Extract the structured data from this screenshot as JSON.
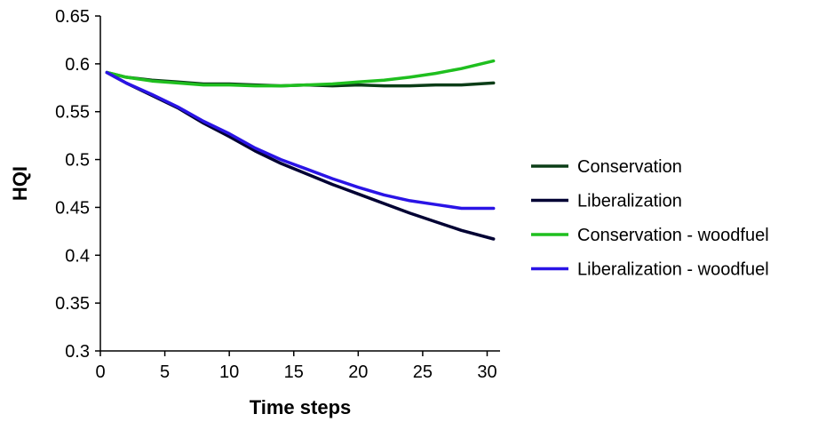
{
  "chart_data": {
    "type": "line",
    "title": "",
    "xlabel": "Time steps",
    "ylabel": "HQI",
    "xlim": [
      0,
      31
    ],
    "ylim": [
      0.3,
      0.65
    ],
    "x_ticks": [
      0,
      5,
      10,
      15,
      20,
      25,
      30
    ],
    "y_ticks": [
      0.3,
      0.35,
      0.4,
      0.45,
      0.5,
      0.55,
      0.6,
      0.65
    ],
    "x_tick_labels": [
      "0",
      "5",
      "10",
      "15",
      "20",
      "25",
      "30"
    ],
    "y_tick_labels": [
      "0.3",
      "0.35",
      "0.4",
      "0.45",
      "0.5",
      "0.55",
      "0.6",
      "0.65"
    ],
    "grid": false,
    "legend_position": "right",
    "series": [
      {
        "name": "Conservation",
        "color": "#0b3d17",
        "points": [
          [
            0.5,
            0.591
          ],
          [
            2,
            0.586
          ],
          [
            4,
            0.583
          ],
          [
            6,
            0.581
          ],
          [
            8,
            0.579
          ],
          [
            10,
            0.579
          ],
          [
            12,
            0.578
          ],
          [
            14,
            0.577
          ],
          [
            16,
            0.578
          ],
          [
            18,
            0.577
          ],
          [
            20,
            0.578
          ],
          [
            22,
            0.577
          ],
          [
            24,
            0.577
          ],
          [
            26,
            0.578
          ],
          [
            28,
            0.578
          ],
          [
            30.5,
            0.58
          ]
        ]
      },
      {
        "name": "Liberalization",
        "color": "#000033",
        "points": [
          [
            0.5,
            0.591
          ],
          [
            2,
            0.58
          ],
          [
            4,
            0.567
          ],
          [
            6,
            0.554
          ],
          [
            8,
            0.538
          ],
          [
            10,
            0.524
          ],
          [
            12,
            0.509
          ],
          [
            14,
            0.496
          ],
          [
            16,
            0.485
          ],
          [
            18,
            0.474
          ],
          [
            20,
            0.464
          ],
          [
            22,
            0.454
          ],
          [
            24,
            0.444
          ],
          [
            26,
            0.435
          ],
          [
            28,
            0.426
          ],
          [
            30.5,
            0.417
          ]
        ]
      },
      {
        "name": "Conservation - woodfuel",
        "color": "#1fbf1f",
        "points": [
          [
            0.5,
            0.591
          ],
          [
            2,
            0.586
          ],
          [
            4,
            0.582
          ],
          [
            6,
            0.58
          ],
          [
            8,
            0.578
          ],
          [
            10,
            0.578
          ],
          [
            12,
            0.577
          ],
          [
            14,
            0.577
          ],
          [
            16,
            0.578
          ],
          [
            18,
            0.579
          ],
          [
            20,
            0.581
          ],
          [
            22,
            0.583
          ],
          [
            24,
            0.586
          ],
          [
            26,
            0.59
          ],
          [
            28,
            0.595
          ],
          [
            30.5,
            0.603
          ]
        ]
      },
      {
        "name": "Liberalization - woodfuel",
        "color": "#2a14e6",
        "points": [
          [
            0.5,
            0.591
          ],
          [
            2,
            0.58
          ],
          [
            4,
            0.568
          ],
          [
            6,
            0.555
          ],
          [
            8,
            0.54
          ],
          [
            10,
            0.527
          ],
          [
            12,
            0.512
          ],
          [
            14,
            0.5
          ],
          [
            16,
            0.49
          ],
          [
            18,
            0.48
          ],
          [
            20,
            0.471
          ],
          [
            22,
            0.463
          ],
          [
            24,
            0.457
          ],
          [
            26,
            0.453
          ],
          [
            28,
            0.449
          ],
          [
            30.5,
            0.449
          ]
        ]
      }
    ]
  }
}
